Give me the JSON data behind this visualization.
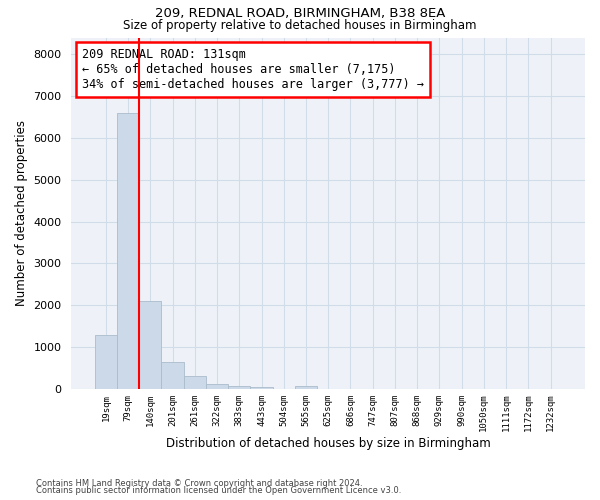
{
  "title1": "209, REDNAL ROAD, BIRMINGHAM, B38 8EA",
  "title2": "Size of property relative to detached houses in Birmingham",
  "xlabel": "Distribution of detached houses by size in Birmingham",
  "ylabel": "Number of detached properties",
  "footer1": "Contains HM Land Registry data © Crown copyright and database right 2024.",
  "footer2": "Contains public sector information licensed under the Open Government Licence v3.0.",
  "bar_labels": [
    "19sqm",
    "79sqm",
    "140sqm",
    "201sqm",
    "261sqm",
    "322sqm",
    "383sqm",
    "443sqm",
    "504sqm",
    "565sqm",
    "625sqm",
    "686sqm",
    "747sqm",
    "807sqm",
    "868sqm",
    "929sqm",
    "990sqm",
    "1050sqm",
    "1111sqm",
    "1172sqm",
    "1232sqm"
  ],
  "bar_values": [
    1300,
    6600,
    2100,
    650,
    300,
    130,
    75,
    55,
    0,
    75,
    0,
    0,
    0,
    0,
    0,
    0,
    0,
    0,
    0,
    0,
    0
  ],
  "bar_color": "#ccd9e8",
  "bar_edge_color": "#aabccc",
  "property_line_x": 2.0,
  "property_line_color": "red",
  "annotation_box_text": "209 REDNAL ROAD: 131sqm\n← 65% of detached houses are smaller (7,175)\n34% of semi-detached houses are larger (3,777) →",
  "ylim": [
    0,
    8400
  ],
  "yticks": [
    0,
    1000,
    2000,
    3000,
    4000,
    5000,
    6000,
    7000,
    8000
  ],
  "grid_color": "#d0dce8",
  "bg_color": "#eef2f8"
}
